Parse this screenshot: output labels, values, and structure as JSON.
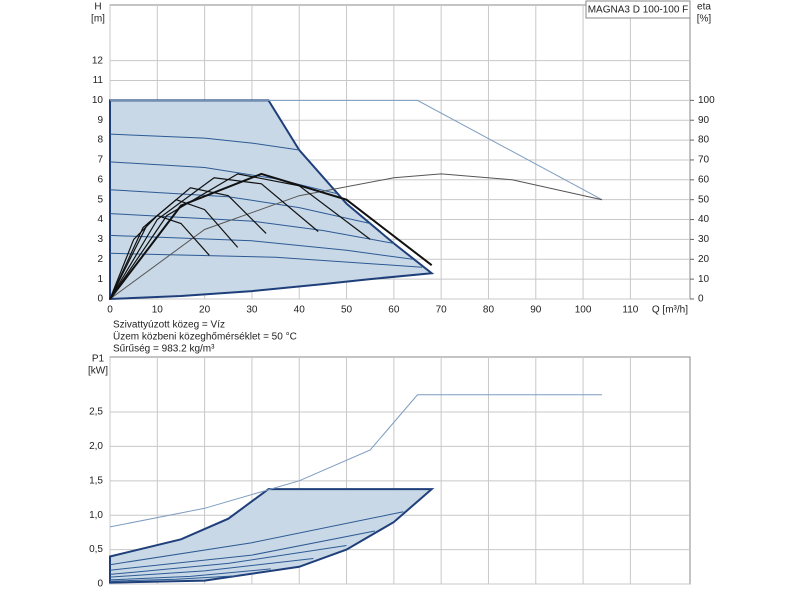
{
  "chart_data": [
    {
      "type": "line",
      "model_label": "MAGNA3 D 100-100 F",
      "ylabel": "H",
      "yunit": "[m]",
      "y2label": "eta",
      "y2unit": "[%]",
      "xlabel": "Q [m³/h]",
      "annotations": [
        "Szivattyúzott közeg = Víz",
        "Üzem közbeni közeghőmérséklet = 50 °C",
        "Sűrűség = 983.2 kg/m³"
      ],
      "xlim": [
        0,
        122.6
      ],
      "xticks": [
        0,
        10,
        20,
        30,
        40,
        50,
        60,
        70,
        80,
        90,
        100,
        110
      ],
      "ylim": [
        0,
        14.8
      ],
      "yticks": [
        0,
        1,
        2,
        3,
        4,
        5,
        6,
        7,
        8,
        9,
        10,
        11,
        12
      ],
      "y2lim": [
        0,
        148
      ],
      "y2ticks": [
        0,
        10,
        20,
        30,
        40,
        50,
        60,
        70,
        80,
        90,
        100
      ],
      "grid": true,
      "show_xtick_labels": true,
      "series": [
        {
          "color": "#1f3f7a",
          "fill": "#c8d8e6",
          "width": 2,
          "x": [
            0,
            33.5,
            40,
            50,
            60,
            68,
            55,
            45,
            30,
            15,
            0
          ],
          "values": [
            10,
            10,
            7.5,
            4.8,
            2.8,
            1.3,
            1.0,
            0.75,
            0.4,
            0.15,
            0
          ]
        },
        {
          "color": "#7d9cbf",
          "width": 1,
          "x": [
            0,
            65,
            104
          ],
          "values": [
            10,
            10,
            5
          ]
        },
        {
          "color": "#2d5a94",
          "width": 1,
          "x": [
            0,
            20,
            30,
            40
          ],
          "values": [
            8.3,
            8.1,
            7.85,
            7.5
          ]
        },
        {
          "color": "#2d5a94",
          "width": 1,
          "x": [
            0,
            20,
            35,
            48
          ],
          "values": [
            6.9,
            6.62,
            6.05,
            5.3
          ]
        },
        {
          "color": "#2d5a94",
          "width": 1,
          "x": [
            0,
            25,
            40,
            55
          ],
          "values": [
            5.5,
            5.15,
            4.6,
            3.8
          ]
        },
        {
          "color": "#2d5a94",
          "width": 1,
          "x": [
            0,
            30,
            45,
            60
          ],
          "values": [
            4.3,
            3.92,
            3.45,
            2.8
          ]
        },
        {
          "color": "#2d5a94",
          "width": 1,
          "x": [
            0,
            30,
            50,
            64
          ],
          "values": [
            3.2,
            2.93,
            2.45,
            2.0
          ]
        },
        {
          "color": "#2d5a94",
          "width": 1,
          "x": [
            0,
            35,
            66
          ],
          "values": [
            2.3,
            2.1,
            1.6
          ]
        },
        {
          "color": "#555555",
          "width": 1,
          "axis": "y2",
          "x": [
            0,
            20,
            40,
            60,
            70,
            85,
            104
          ],
          "values": [
            0,
            35,
            52,
            61,
            63,
            60,
            50
          ]
        },
        {
          "color": "#111111",
          "width": 1.2,
          "axis": "y2",
          "x": [
            0,
            5,
            10,
            15,
            21
          ],
          "values": [
            0,
            30,
            42,
            38,
            22
          ]
        },
        {
          "color": "#111111",
          "width": 1.2,
          "axis": "y2",
          "x": [
            0,
            7,
            14,
            20,
            27
          ],
          "values": [
            0,
            36,
            50,
            45,
            26
          ]
        },
        {
          "color": "#111111",
          "width": 1.2,
          "axis": "y2",
          "x": [
            0,
            8,
            17,
            25,
            33
          ],
          "values": [
            0,
            38,
            56,
            52,
            33
          ]
        },
        {
          "color": "#111111",
          "width": 1.2,
          "axis": "y2",
          "x": [
            0,
            10,
            22,
            32,
            44
          ],
          "values": [
            0,
            40,
            61,
            58,
            34
          ]
        },
        {
          "color": "#111111",
          "width": 1.2,
          "axis": "y2",
          "x": [
            0,
            12,
            27,
            40,
            55
          ],
          "values": [
            0,
            42,
            63,
            57,
            30
          ]
        },
        {
          "color": "#111111",
          "width": 2,
          "axis": "y2",
          "x": [
            0,
            15,
            32,
            50,
            68
          ],
          "values": [
            0,
            47,
            63,
            50,
            17
          ]
        }
      ]
    },
    {
      "type": "line",
      "ylabel": "P1",
      "yunit": "[kW]",
      "xlim": [
        0,
        122.6
      ],
      "xticks": [
        0,
        10,
        20,
        30,
        40,
        50,
        60,
        70,
        80,
        90,
        100,
        110
      ],
      "ylim": [
        0,
        3.3
      ],
      "yticks": [
        0,
        {
          "value": 0.5,
          "label": "0,5"
        },
        {
          "value": 1,
          "label": "1,0"
        },
        {
          "value": 1.5,
          "label": "1,5"
        },
        {
          "value": 2,
          "label": "2,0"
        },
        {
          "value": 2.5,
          "label": "2,5"
        }
      ],
      "grid": true,
      "show_xtick_labels": false,
      "series": [
        {
          "color": "#1f3f7a",
          "fill": "#c8d8e6",
          "width": 2,
          "x": [
            0,
            15,
            25,
            33.5,
            68,
            60,
            50,
            40,
            20,
            0
          ],
          "values": [
            0.4,
            0.65,
            0.95,
            1.38,
            1.38,
            0.9,
            0.5,
            0.25,
            0.05,
            0.02
          ]
        },
        {
          "color": "#7d9cbf",
          "width": 1,
          "x": [
            0,
            20,
            40,
            55,
            65,
            104
          ],
          "values": [
            0.83,
            1.1,
            1.5,
            1.95,
            2.75,
            2.75
          ]
        },
        {
          "color": "#2d5a94",
          "width": 1,
          "x": [
            0,
            30,
            62
          ],
          "values": [
            0.28,
            0.6,
            1.05
          ]
        },
        {
          "color": "#2d5a94",
          "width": 1,
          "x": [
            0,
            30,
            56
          ],
          "values": [
            0.2,
            0.42,
            0.77
          ]
        },
        {
          "color": "#2d5a94",
          "width": 1,
          "x": [
            0,
            25,
            50
          ],
          "values": [
            0.14,
            0.3,
            0.56
          ]
        },
        {
          "color": "#2d5a94",
          "width": 1,
          "x": [
            0,
            20,
            43
          ],
          "values": [
            0.1,
            0.19,
            0.37
          ]
        },
        {
          "color": "#2d5a94",
          "width": 1,
          "x": [
            0,
            17,
            34
          ],
          "values": [
            0.06,
            0.11,
            0.22
          ]
        },
        {
          "color": "#2d5a94",
          "width": 1,
          "x": [
            0,
            14,
            27
          ],
          "values": [
            0.04,
            0.07,
            0.12
          ]
        }
      ]
    }
  ]
}
